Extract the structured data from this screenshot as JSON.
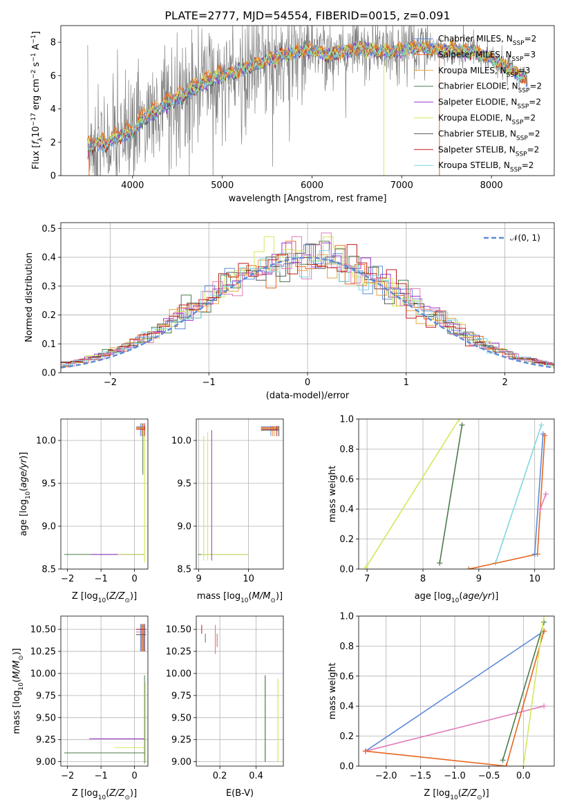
{
  "figure_title": "PLATE=2777, MJD=54554, FIBERID=0015, z=0.091",
  "colors": {
    "Chabrier MILES": "#5b8ad8",
    "Salpeter MILES": "#e6651e",
    "Kroupa MILES": "#e8a33c",
    "Chabrier ELODIE": "#4a7a4a",
    "Salpeter ELODIE": "#9b30c8",
    "Kroupa ELODIE": "#d2e85a",
    "Chabrier STELIB": "#555555",
    "Salpeter STELIB": "#c01818",
    "Kroupa STELIB": "#7fd6e0",
    "data": "#7f7f7f",
    "normal": "#5b8ad8",
    "pink": "#e07ab8"
  },
  "chart_data": [
    {
      "type": "line",
      "xlabel": "wavelength [Angstrom, rest frame]",
      "ylabel": "Flux [f_λ10^-17 erg cm^-2 s^-1 A^-1]",
      "xlim": [
        3200,
        8700
      ],
      "ylim": [
        0,
        9
      ],
      "xticks": [
        4000,
        5000,
        6000,
        7000,
        8000
      ],
      "yticks": [
        0,
        2,
        4,
        6,
        8
      ],
      "legend_position": "right",
      "legend": [
        {
          "label": "Chabrier MILES, N",
          "sub": "SSP",
          "suffix": "=2"
        },
        {
          "label": "Salpeter MILES, N",
          "sub": "SSP",
          "suffix": "=3"
        },
        {
          "label": "Kroupa MILES, N",
          "sub": "SSP",
          "suffix": "=3"
        },
        {
          "label": "Chabrier ELODIE, N",
          "sub": "SSP",
          "suffix": "=2"
        },
        {
          "label": "Salpeter ELODIE, N",
          "sub": "SSP",
          "suffix": "=2"
        },
        {
          "label": "Kroupa ELODIE, N",
          "sub": "SSP",
          "suffix": "=2"
        },
        {
          "label": "Chabrier STELIB, N",
          "sub": "SSP",
          "suffix": "=2"
        },
        {
          "label": "Salpeter STELIB, N",
          "sub": "SSP",
          "suffix": "=2"
        },
        {
          "label": "Kroupa STELIB, N",
          "sub": "SSP",
          "suffix": "=2"
        }
      ],
      "model_continuum": {
        "x": [
          3500,
          3600,
          3700,
          3800,
          3900,
          4000,
          4100,
          4200,
          4400,
          4600,
          4800,
          5000,
          5200,
          5400,
          5600,
          5800,
          6000,
          6200,
          6400,
          6600,
          6800,
          7000,
          7200,
          7400,
          7600,
          7800,
          8000,
          8200,
          8400
        ],
        "y": [
          1.6,
          1.9,
          1.8,
          2.2,
          2.4,
          2.5,
          3.3,
          3.6,
          4.3,
          4.9,
          5.5,
          6.0,
          6.3,
          6.7,
          7.1,
          7.4,
          7.5,
          7.2,
          7.5,
          7.6,
          7.4,
          7.5,
          7.7,
          7.5,
          7.5,
          7.4,
          7.0,
          6.4,
          5.7
        ]
      },
      "data_spectrum_range": [
        3500,
        8400
      ]
    },
    {
      "type": "histogram",
      "xlabel": "(data-model)/error",
      "ylabel": "Normed distribution",
      "xlim": [
        -2.5,
        2.5
      ],
      "ylim": [
        0,
        0.52
      ],
      "xticks": [
        -2,
        -1,
        0,
        1,
        2
      ],
      "yticks": [
        0.0,
        0.1,
        0.2,
        0.3,
        0.4,
        0.5
      ],
      "legend": [
        "𝒩(0, 1)"
      ],
      "legend_position": "top-right",
      "bin_width": 0.1
    },
    {
      "type": "scatter",
      "xlabel": "Z [log10(Z/Z⊙)]",
      "ylabel": "age [log10(age/yr)]",
      "xlim": [
        -2.2,
        0.4
      ],
      "ylim": [
        8.5,
        10.25
      ],
      "xticks": [
        -2,
        -1,
        0
      ],
      "yticks": [
        8.5,
        9.0,
        9.5,
        10.0
      ]
    },
    {
      "type": "scatter",
      "xlabel": "mass [log10(M/M⊙)]",
      "ylabel": "",
      "xlim": [
        8.95,
        10.7
      ],
      "ylim": [
        8.5,
        10.25
      ],
      "xticks": [
        9,
        10
      ],
      "yticks": [
        8.5,
        9.0,
        9.5,
        10.0
      ]
    },
    {
      "type": "line",
      "xlabel": "age [log10(age/yr)]",
      "ylabel": "mass weight",
      "xlim": [
        6.85,
        10.35
      ],
      "ylim": [
        0,
        1
      ],
      "xticks": [
        7,
        8,
        9,
        10
      ],
      "yticks": [
        0.0,
        0.2,
        0.4,
        0.6,
        0.8,
        1.0
      ],
      "series": [
        {
          "name": "Kroupa ELODIE",
          "x": [
            6.98,
            8.65
          ],
          "y": [
            0.01,
            1.0
          ]
        },
        {
          "name": "Chabrier ELODIE",
          "x": [
            8.3,
            8.7
          ],
          "y": [
            0.04,
            0.96
          ]
        },
        {
          "name": "Kroupa STELIB",
          "x": [
            9.3,
            10.12
          ],
          "y": [
            0.04,
            0.96
          ]
        },
        {
          "name": "Salpeter MILES",
          "x": [
            8.82,
            10.05,
            10.18
          ],
          "y": [
            0.0,
            0.1,
            0.89
          ]
        },
        {
          "name": "Chabrier MILES",
          "x": [
            10.0,
            10.15
          ],
          "y": [
            0.1,
            0.9
          ]
        },
        {
          "name": "pink",
          "x": [
            10.1,
            10.2
          ],
          "y": [
            0.4,
            0.5
          ]
        }
      ]
    },
    {
      "type": "scatter",
      "xlabel": "Z [log10(Z/Z⊙)]",
      "ylabel": "mass [log10(M/M⊙)]",
      "xlim": [
        -2.2,
        0.4
      ],
      "ylim": [
        8.95,
        10.65
      ],
      "xticks": [
        -2,
        -1,
        0
      ],
      "yticks": [
        9.0,
        9.25,
        9.5,
        9.75,
        10.0,
        10.25,
        10.5
      ]
    },
    {
      "type": "scatter",
      "xlabel": "E(B-V)",
      "ylabel": "",
      "xlim": [
        0.07,
        0.55
      ],
      "ylim": [
        8.95,
        10.65
      ],
      "xticks": [
        0.2,
        0.4
      ],
      "yticks": [
        9.0,
        9.25,
        9.5,
        9.75,
        10.0,
        10.25,
        10.5
      ]
    },
    {
      "type": "line",
      "xlabel": "Z [log10(Z/Z⊙)]",
      "ylabel": "mass weight",
      "xlim": [
        -2.4,
        0.45
      ],
      "ylim": [
        0,
        1
      ],
      "xticks": [
        -2.0,
        -1.5,
        -1.0,
        -0.5,
        0.0
      ],
      "yticks": [
        0.0,
        0.2,
        0.4,
        0.6,
        0.8,
        1.0
      ],
      "series": [
        {
          "name": "Chabrier MILES",
          "x": [
            -2.3,
            0.3
          ],
          "y": [
            0.1,
            0.9
          ]
        },
        {
          "name": "pink",
          "x": [
            -2.3,
            0.3
          ],
          "y": [
            0.1,
            0.4
          ]
        },
        {
          "name": "Salpeter MILES",
          "x": [
            -2.3,
            -0.25,
            0.3
          ],
          "y": [
            0.1,
            0.0,
            0.9
          ]
        },
        {
          "name": "Chabrier ELODIE",
          "x": [
            -0.3,
            0.3
          ],
          "y": [
            0.04,
            0.96
          ]
        },
        {
          "name": "Kroupa ELODIE",
          "x": [
            0.0,
            0.3
          ],
          "y": [
            0.0,
            1.0
          ]
        }
      ]
    }
  ]
}
